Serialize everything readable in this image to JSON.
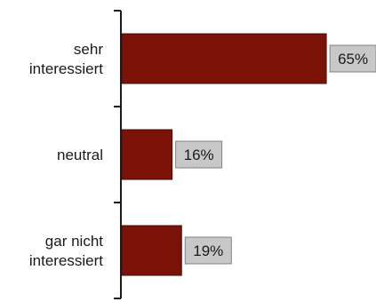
{
  "chart_data": {
    "type": "bar",
    "orientation": "horizontal",
    "categories": [
      [
        "sehr",
        "interessiert"
      ],
      [
        "neutral"
      ],
      [
        "gar nicht",
        "interessiert"
      ]
    ],
    "values": [
      65,
      16,
      19
    ],
    "data_labels": [
      "65%",
      "16%",
      "19%"
    ],
    "xlim": [
      0,
      100
    ],
    "grid": false,
    "legend": "none",
    "bar_color": "#7a1208",
    "label_box_fill": "#c8c8c8",
    "label_box_stroke": "#808080",
    "axis_color": "#1a1a1a"
  }
}
